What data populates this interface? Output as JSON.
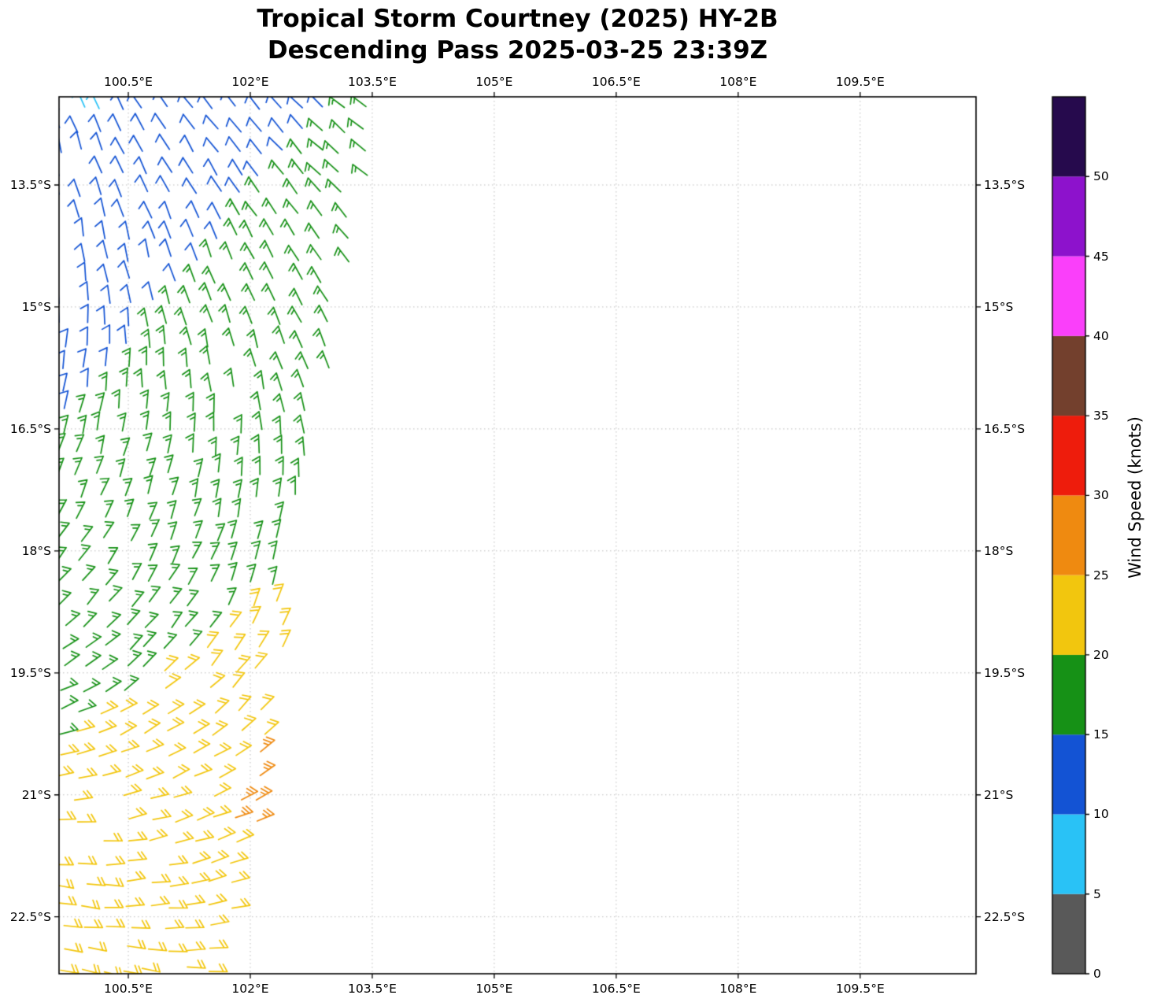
{
  "title": {
    "line1": "Tropical Storm Courtney (2025) HY-2B",
    "line2": "Descending Pass 2025-03-25 23:39Z"
  },
  "axes": {
    "x_tick_values": [
      100.5,
      102,
      103.5,
      105,
      106.5,
      108,
      109.5
    ],
    "x_tick_labels": [
      "100.5°E",
      "102°E",
      "103.5°E",
      "105°E",
      "106.5°E",
      "108°E",
      "109.5°E"
    ],
    "y_tick_values": [
      13.5,
      15,
      16.5,
      18,
      19.5,
      21,
      22.5
    ],
    "y_tick_labels": [
      "13.5°S",
      "15°S",
      "16.5°S",
      "18°S",
      "19.5°S",
      "21°S",
      "22.5°S"
    ]
  },
  "colorbar": {
    "label": "Wind Speed (knots)",
    "tick_values": [
      0,
      5,
      10,
      15,
      20,
      25,
      30,
      35,
      40,
      45,
      50
    ],
    "value_max": 55,
    "bands": [
      {
        "from": 0,
        "to": 5,
        "color": "#595959"
      },
      {
        "from": 5,
        "to": 10,
        "color": "#29c2f6"
      },
      {
        "from": 10,
        "to": 15,
        "color": "#1353d4"
      },
      {
        "from": 15,
        "to": 20,
        "color": "#169116"
      },
      {
        "from": 20,
        "to": 25,
        "color": "#f2c60e"
      },
      {
        "from": 25,
        "to": 30,
        "color": "#ef8a10"
      },
      {
        "from": 30,
        "to": 35,
        "color": "#ee1c0c"
      },
      {
        "from": 35,
        "to": 40,
        "color": "#73402d"
      },
      {
        "from": 40,
        "to": 45,
        "color": "#fa3ffa"
      },
      {
        "from": 45,
        "to": 50,
        "color": "#8d12cc"
      },
      {
        "from": 50,
        "to": 55,
        "color": "#260a4d"
      }
    ]
  },
  "chart_data": {
    "type": "wind_barbs",
    "title": "Tropical Storm Courtney (2025) HY-2B — Descending Pass 2025-03-25 23:39Z",
    "xlabel_unit": "degrees East",
    "ylabel_unit": "degrees South",
    "lon_domain": [
      99.648,
      110.925
    ],
    "lat_domain": [
      12.416,
      23.2
    ],
    "grid": true,
    "legend_position": "right-colorbar",
    "barb_units_knots_per_half_barb": 5,
    "swath": {
      "lon_start": 99.66,
      "lon_step": 0.27,
      "rows": [
        [
          12.55,
          103.55
        ],
        [
          12.82,
          103.55
        ],
        [
          13.08,
          103.5
        ],
        [
          13.35,
          103.45
        ],
        [
          13.61,
          103.4
        ],
        [
          13.88,
          103.35
        ],
        [
          14.14,
          103.28
        ],
        [
          14.41,
          103.2
        ],
        [
          14.67,
          103.12
        ],
        [
          14.94,
          103.06
        ],
        [
          15.2,
          103.0
        ],
        [
          15.47,
          102.96
        ],
        [
          15.73,
          102.92
        ],
        [
          16.0,
          102.9
        ],
        [
          16.26,
          102.86
        ],
        [
          16.53,
          102.82
        ],
        [
          16.79,
          102.76
        ],
        [
          17.06,
          102.7
        ],
        [
          17.32,
          102.66
        ],
        [
          17.59,
          102.6
        ],
        [
          17.85,
          102.56
        ],
        [
          18.12,
          102.5
        ],
        [
          18.38,
          102.46
        ],
        [
          18.65,
          102.42
        ],
        [
          18.91,
          102.4
        ],
        [
          19.18,
          102.36
        ],
        [
          19.44,
          102.32
        ],
        [
          19.71,
          102.3
        ],
        [
          19.97,
          102.26
        ],
        [
          20.24,
          102.24
        ],
        [
          20.5,
          102.22
        ],
        [
          20.77,
          102.2
        ],
        [
          21.03,
          102.16
        ],
        [
          21.3,
          102.1
        ],
        [
          21.56,
          102.06
        ],
        [
          21.83,
          102.0
        ],
        [
          22.09,
          101.95
        ],
        [
          22.36,
          101.9
        ],
        [
          22.62,
          101.8
        ],
        [
          22.89,
          101.7
        ],
        [
          23.15,
          101.55
        ]
      ]
    },
    "speed_classes_knots": {
      "cyan": 8,
      "blue": 12,
      "green": 17,
      "yellow": 22,
      "orange": 27
    },
    "green_boundary": {
      "lon0": 102.75,
      "lat0": 12.8,
      "dlon_dlat": -0.85
    },
    "yellow_boundary": {
      "lon0": 102.45,
      "lat0": 18.35,
      "dlon_dlat": -1.4,
      "all_yellow_south_of_lat": 20.3
    },
    "orange_boxes": [
      [
        101.95,
        102.45,
        20.35,
        20.78
      ],
      [
        101.75,
        102.35,
        20.9,
        21.42
      ],
      [
        101.85,
        102.28,
        21.6,
        22.28
      ]
    ],
    "cyan_cells": [
      [
        100.05,
        12.55
      ]
    ],
    "direction_profile": {
      "note": "meteorological from-direction in degrees, linear in latitude (values may exceed 360 before modulo)",
      "keyframes_lat_deg": [
        [
          12.4,
          322
        ],
        [
          14.0,
          333
        ],
        [
          15.5,
          347
        ],
        [
          17.0,
          366
        ],
        [
          18.5,
          387
        ],
        [
          20.0,
          411
        ],
        [
          21.5,
          432
        ],
        [
          23.2,
          449
        ]
      ],
      "dlon_slope_deg_per_deg": -9,
      "ref_lon": 101.5
    }
  }
}
